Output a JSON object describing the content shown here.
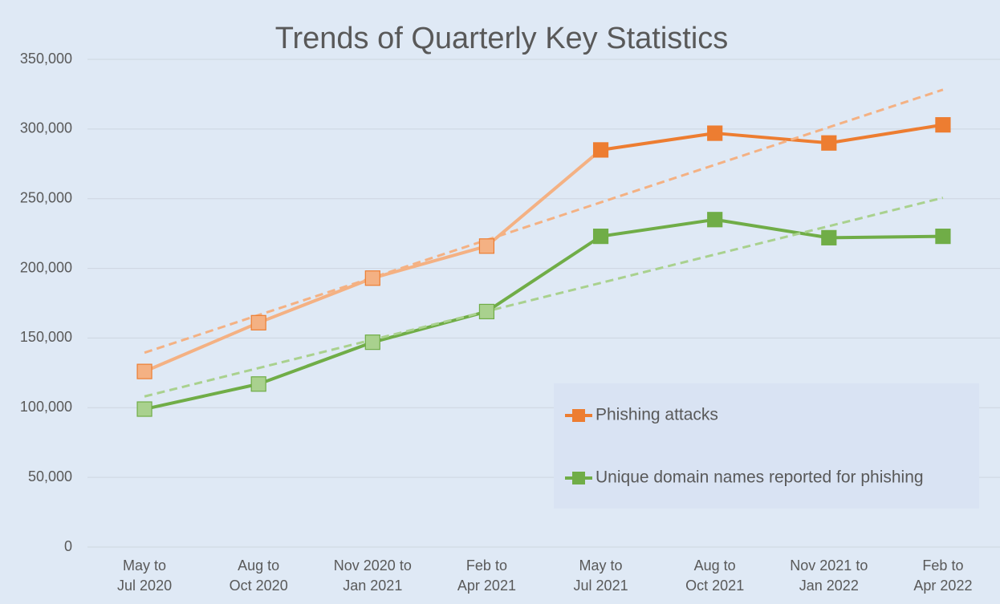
{
  "chart_data": {
    "type": "line",
    "title": "Trends of Quarterly Key Statistics",
    "categories": [
      [
        "May to",
        "Jul 2020"
      ],
      [
        "Aug to",
        "Oct 2020"
      ],
      [
        "Nov 2020 to",
        "Jan 2021"
      ],
      [
        "Feb to",
        "Apr 2021"
      ],
      [
        "May to",
        "Jul 2021"
      ],
      [
        "Aug to",
        "Oct 2021"
      ],
      [
        "Nov 2021 to",
        "Jan 2022"
      ],
      [
        "Feb to",
        "Apr 2022"
      ]
    ],
    "series": [
      {
        "name": "Phishing attacks",
        "color": "#ed7d31",
        "point_colors": [
          "#f4b183",
          "#f4b183",
          "#f4b183",
          "#f4b183",
          "#ed7d31",
          "#ed7d31",
          "#ed7d31",
          "#ed7d31"
        ],
        "segment_colors": [
          "#f4b183",
          "#f4b183",
          "#f4b183",
          "#f4b183",
          "#ed7d31",
          "#ed7d31",
          "#ed7d31"
        ],
        "trend_color": "#f4b183",
        "values": [
          126000,
          161000,
          193000,
          216000,
          285000,
          297000,
          290000,
          303000
        ]
      },
      {
        "name": "Unique domain names reported for phishing",
        "color": "#70ad47",
        "point_colors": [
          "#a9d18e",
          "#a9d18e",
          "#a9d18e",
          "#a9d18e",
          "#70ad47",
          "#70ad47",
          "#70ad47",
          "#70ad47"
        ],
        "segment_colors": [
          "#70ad47",
          "#70ad47",
          "#70ad47",
          "#70ad47",
          "#70ad47",
          "#70ad47",
          "#70ad47"
        ],
        "trend_color": "#a9d18e",
        "values": [
          99000,
          117000,
          147000,
          169000,
          223000,
          235000,
          222000,
          223000
        ]
      }
    ],
    "trendline": true,
    "ylim": [
      0,
      350000
    ],
    "yticks": [
      {
        "value": 0,
        "label": "0"
      },
      {
        "value": 50000,
        "label": "50,000"
      },
      {
        "value": 100000,
        "label": "100,000"
      },
      {
        "value": 150000,
        "label": "150,000"
      },
      {
        "value": 200000,
        "label": "200,000"
      },
      {
        "value": 250000,
        "label": "250,000"
      },
      {
        "value": 300000,
        "label": "300,000"
      },
      {
        "value": 350000,
        "label": "350,000"
      }
    ],
    "grid": true,
    "legend": "lower right"
  }
}
